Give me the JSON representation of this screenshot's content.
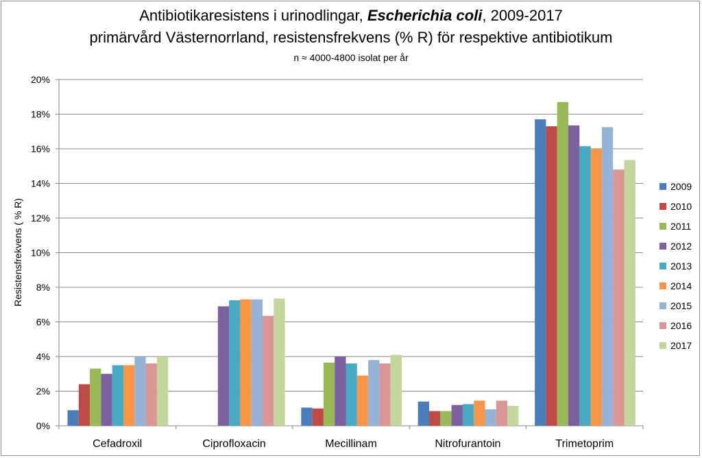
{
  "chart_data": {
    "type": "bar",
    "title_prefix": "Antibiotikaresistens i urinodlingar, ",
    "title_species": "Escherichia coli",
    "title_suffix": ", 2009-2017",
    "subtitle": "primärvård Västernorrland, resistensfrekvens (% R) för respektive antibiotikum",
    "note": "n ≈ 4000-4800 isolat per år",
    "ylabel": "Resistensfrekvens ( % R)",
    "xlabel": "",
    "ylim": [
      0,
      20
    ],
    "yticks": [
      "0%",
      "2%",
      "4%",
      "6%",
      "8%",
      "10%",
      "12%",
      "14%",
      "16%",
      "18%",
      "20%"
    ],
    "grid": true,
    "legend_position": "right",
    "categories": [
      "Cefadroxil",
      "Ciprofloxacin",
      "Mecillinam",
      "Nitrofurantoin",
      "Trimetoprim"
    ],
    "series": [
      {
        "name": "2009",
        "color": "#4a7ebb",
        "values": [
          0.9,
          null,
          1.05,
          1.4,
          17.7
        ]
      },
      {
        "name": "2010",
        "color": "#be4b48",
        "values": [
          2.4,
          null,
          1.0,
          0.85,
          17.3
        ]
      },
      {
        "name": "2011",
        "color": "#98b954",
        "values": [
          3.3,
          null,
          3.65,
          0.85,
          18.7
        ]
      },
      {
        "name": "2012",
        "color": "#7d60a0",
        "values": [
          3.0,
          6.9,
          4.0,
          1.2,
          17.35
        ]
      },
      {
        "name": "2013",
        "color": "#46aac5",
        "values": [
          3.5,
          7.25,
          3.6,
          1.25,
          16.15
        ]
      },
      {
        "name": "2014",
        "color": "#f79646",
        "values": [
          3.5,
          7.3,
          2.9,
          1.45,
          16.0
        ]
      },
      {
        "name": "2015",
        "color": "#95b3d7",
        "values": [
          4.0,
          7.3,
          3.8,
          0.95,
          17.25
        ]
      },
      {
        "name": "2016",
        "color": "#d99694",
        "values": [
          3.6,
          6.35,
          3.6,
          1.45,
          14.8
        ]
      },
      {
        "name": "2017",
        "color": "#c3d69b",
        "values": [
          4.0,
          7.35,
          4.1,
          1.15,
          15.35
        ]
      }
    ]
  }
}
